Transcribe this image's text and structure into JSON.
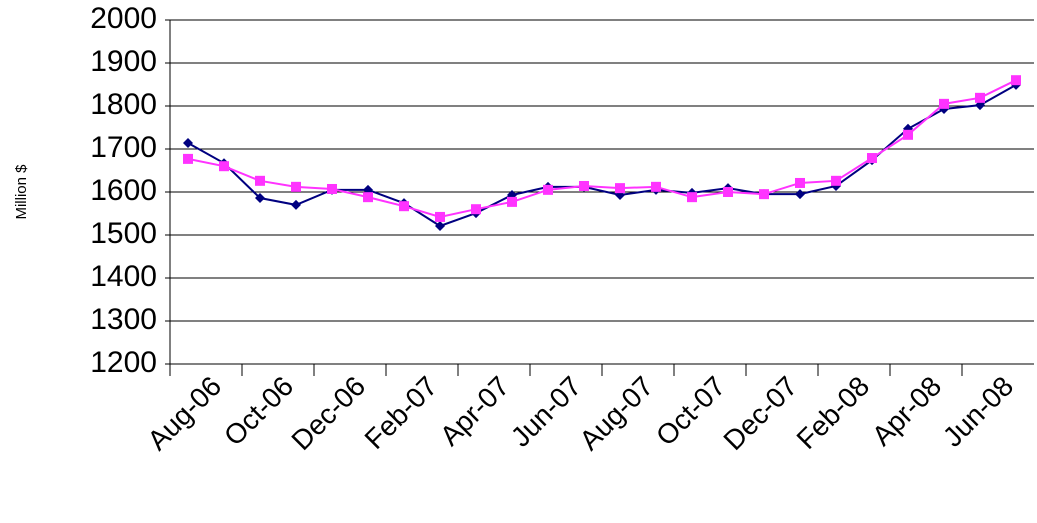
{
  "chart_data": {
    "type": "line",
    "y_label": "Million $",
    "categories": [
      "Aug-06",
      null,
      "Oct-06",
      null,
      "Dec-06",
      null,
      "Feb-07",
      null,
      "Apr-07",
      null,
      "Jun-07",
      null,
      "Aug-07",
      null,
      "Oct-07",
      null,
      "Dec-07",
      null,
      "Feb-08",
      null,
      "Apr-08",
      null,
      "Jun-08",
      null
    ],
    "series": [
      {
        "color": "#000080",
        "marker": "diamond",
        "values": [
          1714,
          1667,
          1586,
          1570,
          1605,
          1605,
          1574,
          1521,
          1551,
          1593,
          1612,
          1612,
          1593,
          1605,
          1598,
          1609,
          1595,
          1595,
          1614,
          1674,
          1747,
          1793,
          1802,
          1849
        ]
      },
      {
        "color": "#ff33ff",
        "marker": "square",
        "values": [
          1677,
          1660,
          1626,
          1612,
          1607,
          1588,
          1567,
          1542,
          1560,
          1577,
          1605,
          1614,
          1609,
          1612,
          1588,
          1600,
          1595,
          1621,
          1626,
          1679,
          1733,
          1805,
          1819,
          1860
        ]
      }
    ],
    "ylim": [
      1200,
      2000
    ],
    "yticks": [
      1200,
      1300,
      1400,
      1500,
      1600,
      1700,
      1800,
      1900,
      2000
    ],
    "grid": true
  }
}
